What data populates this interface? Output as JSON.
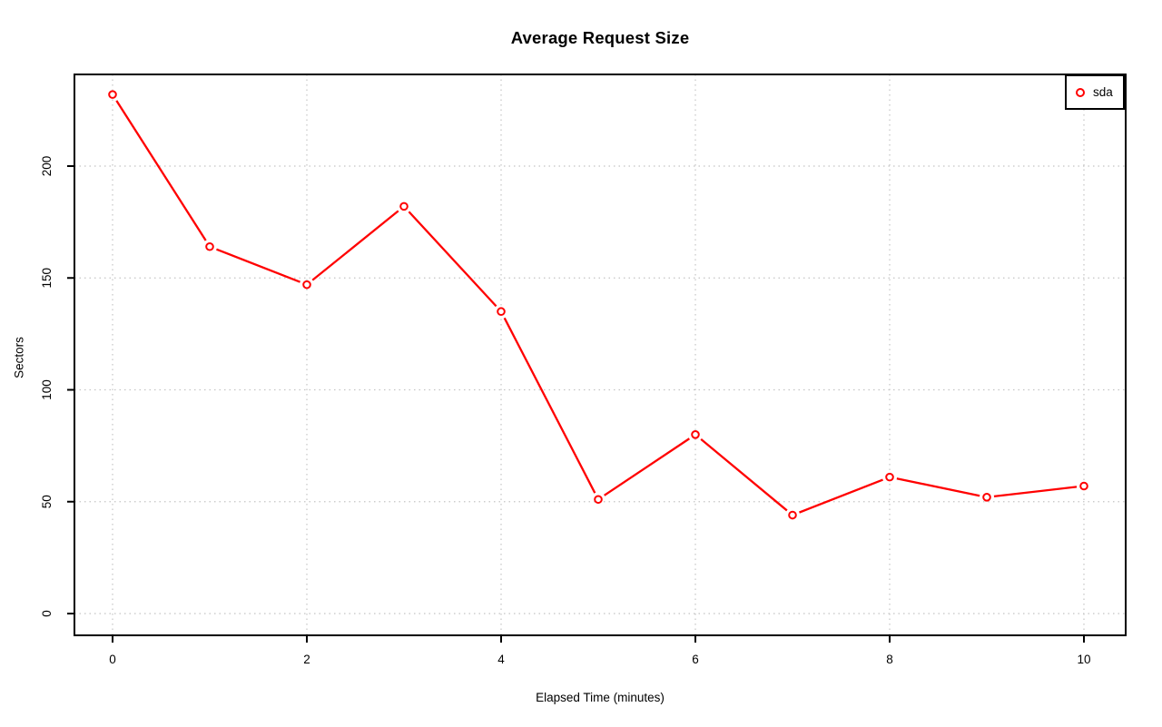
{
  "chart_data": {
    "type": "line",
    "title": "Average Request Size",
    "xlabel": "Elapsed Time (minutes)",
    "ylabel": "Sectors",
    "x": [
      0,
      1,
      2,
      3,
      4,
      5,
      6,
      7,
      8,
      9,
      10
    ],
    "series": [
      {
        "name": "sda",
        "color": "#ff0000",
        "marker": "open-circle",
        "line_type": "b",
        "values": [
          232,
          164,
          147,
          182,
          135,
          51,
          80,
          44,
          61,
          52,
          57
        ]
      }
    ],
    "x_ticks": [
      0,
      2,
      4,
      6,
      8,
      10
    ],
    "y_ticks": [
      0,
      50,
      100,
      150,
      200
    ],
    "xlim": [
      -0.4,
      10.43
    ],
    "ylim": [
      -9.7,
      241
    ],
    "grid": true,
    "grid_style": "dotted",
    "legend_position": "top-right",
    "colors": {
      "axis": "#000000",
      "grid": "#c4c4c4",
      "background": "#ffffff",
      "text": "#000000"
    }
  }
}
